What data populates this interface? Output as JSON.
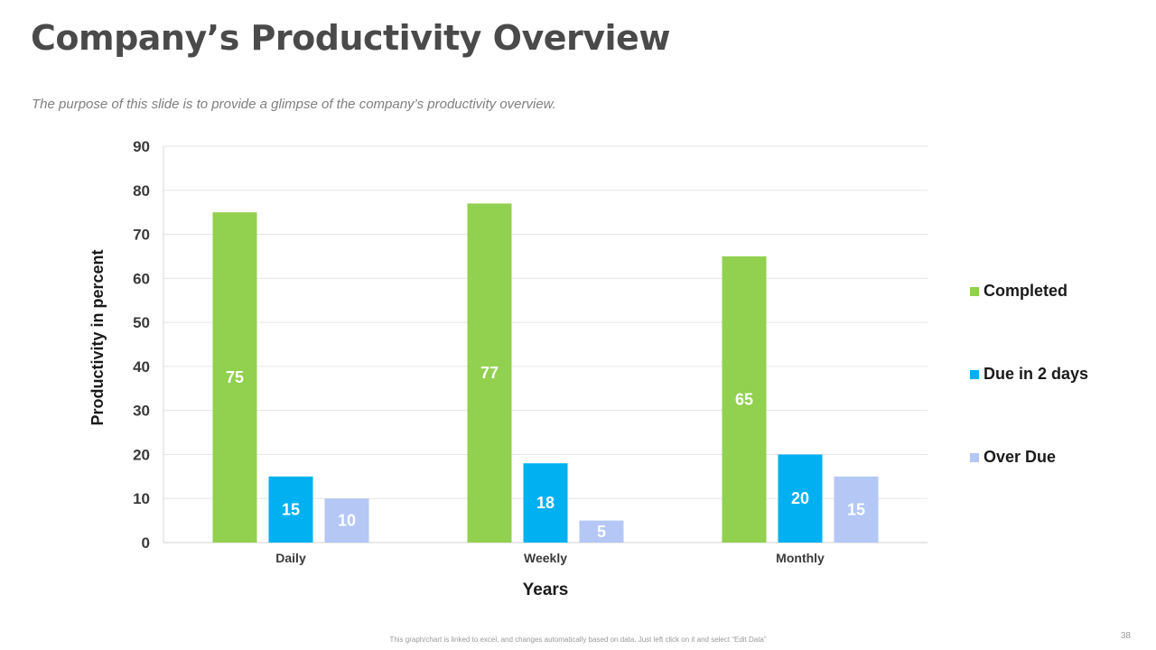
{
  "slide": {
    "title": "Company’s Productivity Overview",
    "subtitle": "The purpose of this slide is to provide a glimpse of the company’s productivity overview.",
    "footer_note": "This graph/chart is linked to excel, and changes automatically based on data. Just left click on it and select “Edit Data”",
    "page_number": "38"
  },
  "chart_data": {
    "type": "bar",
    "categories": [
      "Daily",
      "Weekly",
      "Monthly"
    ],
    "series": [
      {
        "name": "Completed",
        "values": [
          75,
          77,
          65
        ],
        "color": "#92d050"
      },
      {
        "name": "Due in 2 days",
        "values": [
          15,
          18,
          20
        ],
        "color": "#00b0f0"
      },
      {
        "name": "Over Due",
        "values": [
          10,
          5,
          15
        ],
        "color": "#b4c7f5"
      }
    ],
    "xlabel": "Years",
    "ylabel": "Productivity in percent",
    "ylim": [
      0,
      90
    ],
    "yticks": [
      0,
      10,
      20,
      30,
      40,
      50,
      60,
      70,
      80,
      90
    ],
    "grid": true,
    "data_labels": true,
    "legend": "right"
  }
}
